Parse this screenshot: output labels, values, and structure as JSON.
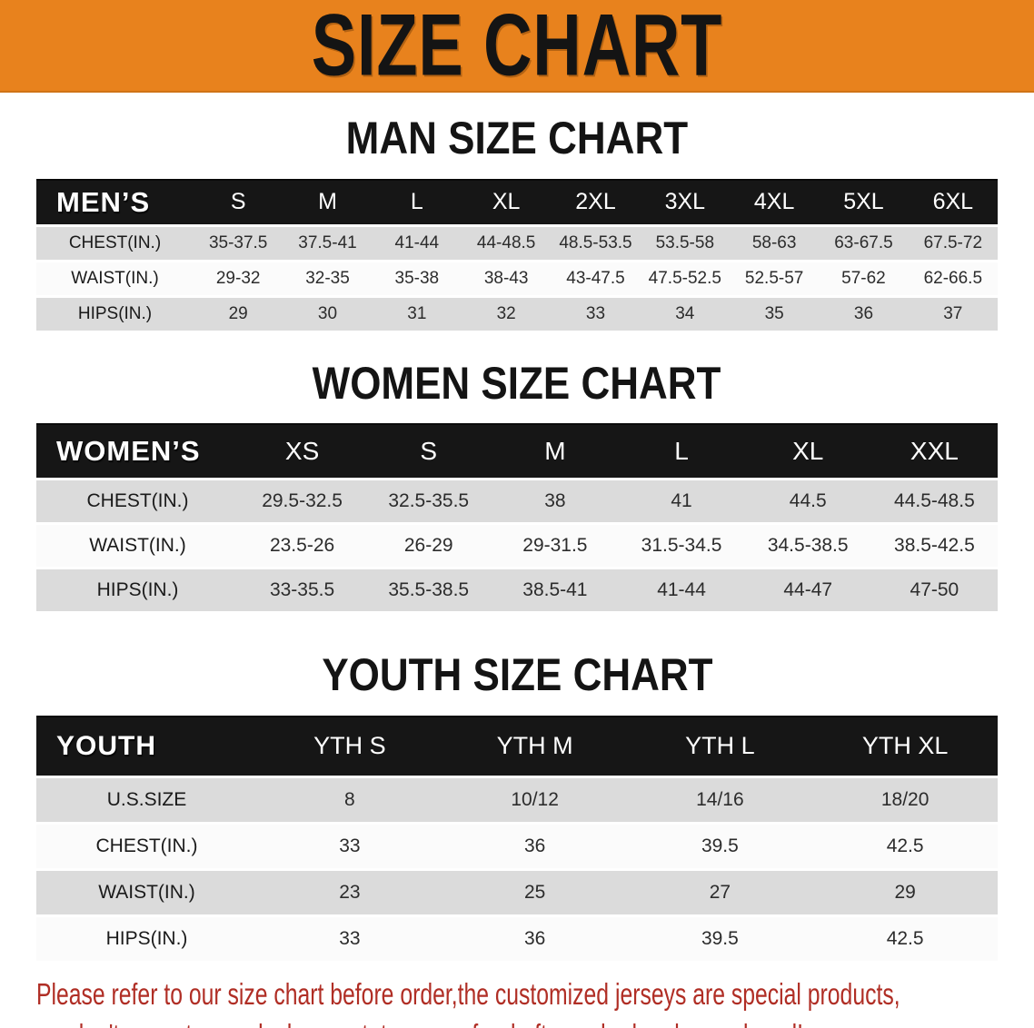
{
  "banner": {
    "title": "SIZE CHART"
  },
  "headings": {
    "men": "MAN SIZE CHART",
    "women": "WOMEN SIZE CHART",
    "youth": "YOUTH SIZE CHART"
  },
  "tables": {
    "men": {
      "label": "MEN’S",
      "sizes": [
        "S",
        "M",
        "L",
        "XL",
        "2XL",
        "3XL",
        "4XL",
        "5XL",
        "6XL"
      ],
      "rows": [
        {
          "label": "CHEST(IN.)",
          "values": [
            "35-37.5",
            "37.5-41",
            "41-44",
            "44-48.5",
            "48.5-53.5",
            "53.5-58",
            "58-63",
            "63-67.5",
            "67.5-72"
          ]
        },
        {
          "label": "WAIST(IN.)",
          "values": [
            "29-32",
            "32-35",
            "35-38",
            "38-43",
            "43-47.5",
            "47.5-52.5",
            "52.5-57",
            "57-62",
            "62-66.5"
          ]
        },
        {
          "label": "HIPS(IN.)",
          "values": [
            "29",
            "30",
            "31",
            "32",
            "33",
            "34",
            "35",
            "36",
            "37"
          ]
        }
      ]
    },
    "women": {
      "label": "WOMEN’S",
      "sizes": [
        "XS",
        "S",
        "M",
        "L",
        "XL",
        "XXL"
      ],
      "rows": [
        {
          "label": "CHEST(IN.)",
          "values": [
            "29.5-32.5",
            "32.5-35.5",
            "38",
            "41",
            "44.5",
            "44.5-48.5"
          ]
        },
        {
          "label": "WAIST(IN.)",
          "values": [
            "23.5-26",
            "26-29",
            "29-31.5",
            "31.5-34.5",
            "34.5-38.5",
            "38.5-42.5"
          ]
        },
        {
          "label": "HIPS(IN.)",
          "values": [
            "33-35.5",
            "35.5-38.5",
            "38.5-41",
            "41-44",
            "44-47",
            "47-50"
          ]
        }
      ]
    },
    "youth": {
      "label": "YOUTH",
      "sizes": [
        "YTH S",
        "YTH M",
        "YTH L",
        "YTH XL"
      ],
      "rows": [
        {
          "label": "U.S.SIZE",
          "values": [
            "8",
            "10/12",
            "14/16",
            "18/20"
          ]
        },
        {
          "label": "CHEST(IN.)",
          "values": [
            "33",
            "36",
            "39.5",
            "42.5"
          ]
        },
        {
          "label": "WAIST(IN.)",
          "values": [
            "23",
            "25",
            "27",
            "29"
          ]
        },
        {
          "label": "HIPS(IN.)",
          "values": [
            "33",
            "36",
            "39.5",
            "42.5"
          ]
        }
      ]
    }
  },
  "footer": {
    "line1": "Please refer to our size chart before order,the customized jerseys are special products,",
    "line2": "we don't accept cancel, change, teturn or refund after order has been placed!"
  },
  "colors": {
    "banner_bg": "#E8821D",
    "header_bar": "#161616",
    "row_gray": "#DBDBDB",
    "row_white": "#FBFBFB",
    "note_red": "#B02E25",
    "title_text": "#141414"
  }
}
